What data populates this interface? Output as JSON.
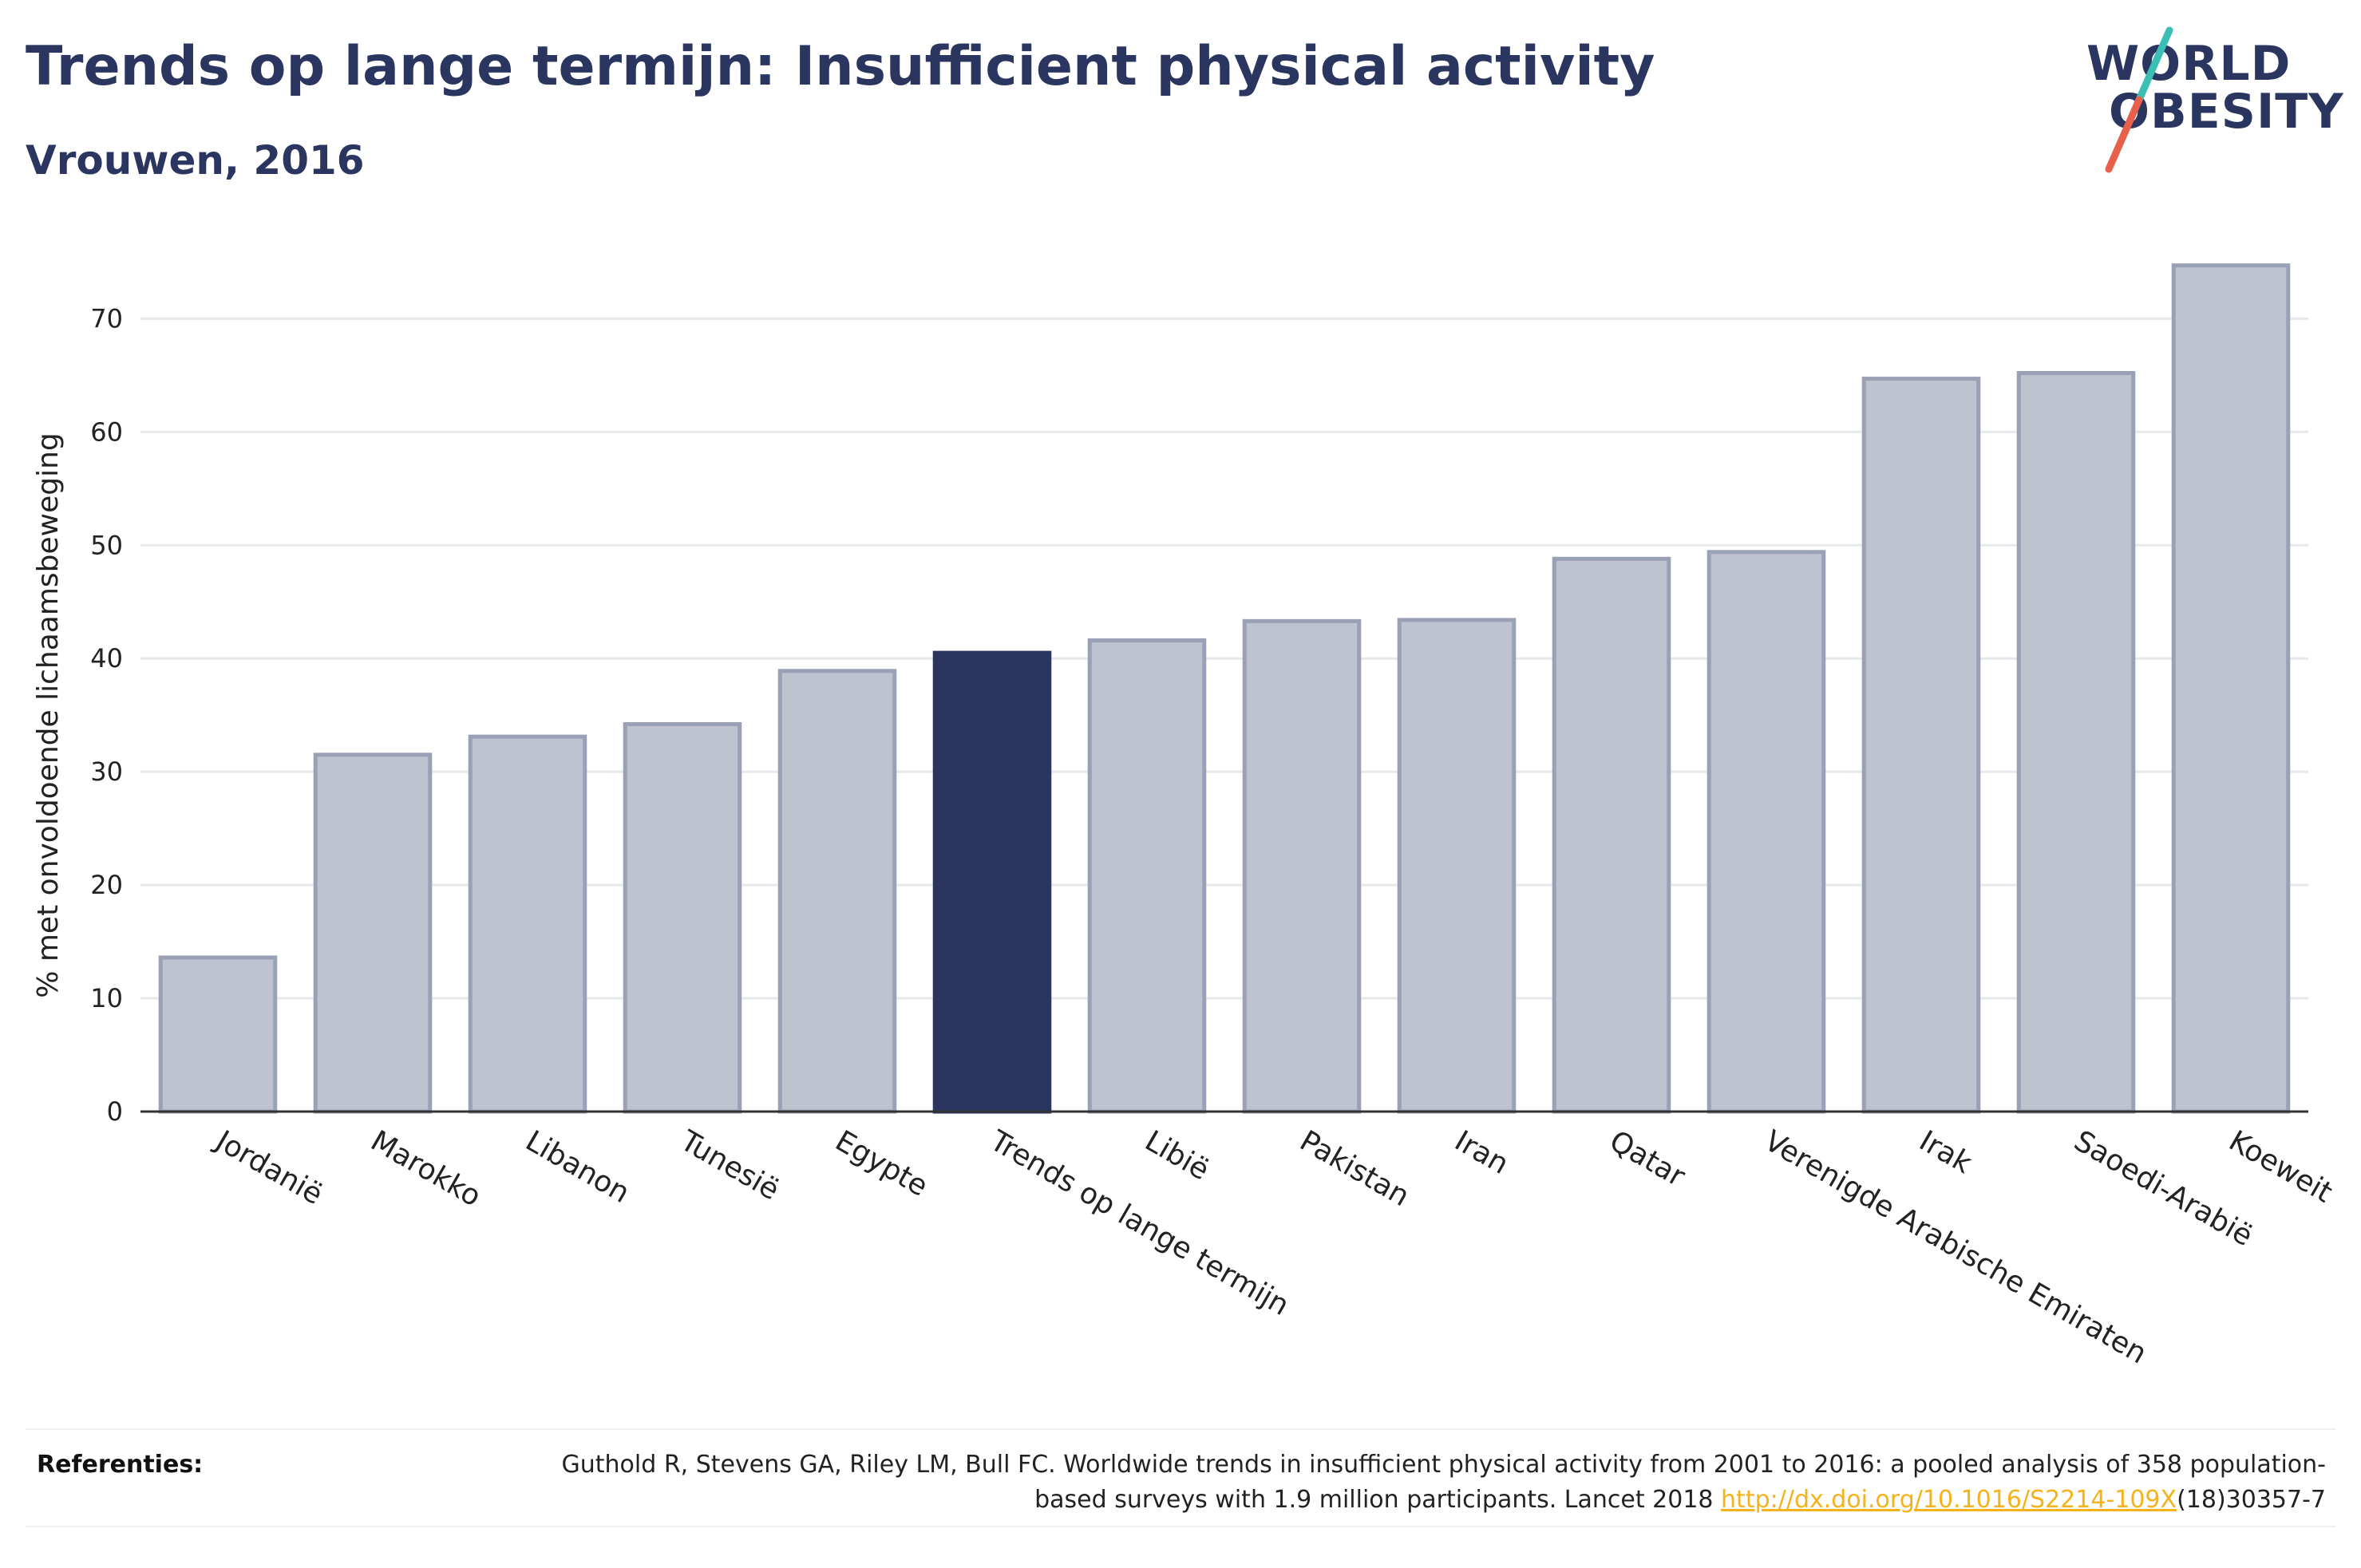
{
  "header": {
    "title": "Trends op lange termijn: Insufficient physical activity",
    "subtitle": "Vrouwen, 2016"
  },
  "logo": {
    "line1": "WORLD",
    "line2": "OBESITY",
    "colors": {
      "text": "#2a3560",
      "slash_top": "#3bbfb4",
      "slash_bottom": "#e8604c"
    }
  },
  "chart_data": {
    "type": "bar",
    "title": "Trends op lange termijn: Insufficient physical activity",
    "subtitle": "Vrouwen, 2016",
    "xlabel": "",
    "ylabel": "% met onvoldoende lichaamsbeweging",
    "ylim": [
      0,
      77
    ],
    "yticks": [
      0,
      10,
      20,
      30,
      40,
      50,
      60,
      70
    ],
    "grid": true,
    "categories": [
      "Jordanië",
      "Marokko",
      "Libanon",
      "Tunesië",
      "Egypte",
      "Trends op lange termijn",
      "Libië",
      "Pakistan",
      "Iran",
      "Qatar",
      "Verenigde Arabische Emiraten",
      "Irak",
      "Saoedi-Arabië",
      "Koeweit"
    ],
    "values": [
      13.6,
      31.5,
      33.1,
      34.2,
      38.9,
      40.5,
      41.6,
      43.3,
      43.4,
      48.8,
      49.4,
      64.7,
      65.2,
      74.7
    ],
    "highlight_index": 5,
    "colors": {
      "bar": "#bfc3cf",
      "bar_edge": "#9aa0b6",
      "highlight": "#2a3560",
      "grid": "#e6e8ec",
      "axis": "#333333"
    }
  },
  "footer": {
    "references_label": "Referenties:",
    "reference_text": "Guthold R, Stevens GA, Riley LM, Bull FC. Worldwide trends in insufficient physical activity from 2001 to 2016: a pooled analysis of 358 population-based surveys with 1.9 million participants. Lancet 2018 ",
    "reference_link": "http://dx.doi.org/10.1016/S2214-109X",
    "reference_suffix": "(18)30357-7"
  }
}
